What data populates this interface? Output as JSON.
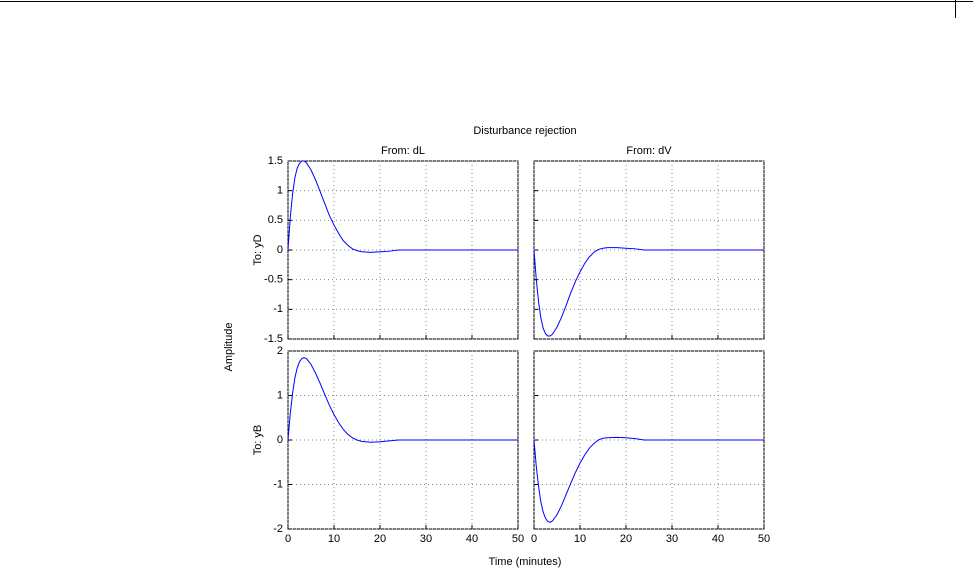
{
  "figure": {
    "title": "Disturbance rejection",
    "x_label": "Time (minutes)",
    "y_label": "Amplitude"
  },
  "chart_data": [
    {
      "type": "line",
      "title": "From: dL",
      "y_label": "To: yD",
      "x": [
        0,
        0.5,
        1,
        1.5,
        2,
        2.5,
        3,
        3.5,
        4,
        5,
        6,
        7,
        8,
        9,
        10,
        11,
        12,
        13,
        14,
        15,
        16,
        18,
        20,
        22,
        24,
        26,
        30,
        40,
        50
      ],
      "series": [
        {
          "color": "#0000ff",
          "values": [
            0,
            0.55,
            0.95,
            1.22,
            1.38,
            1.46,
            1.5,
            1.5,
            1.47,
            1.35,
            1.18,
            0.98,
            0.78,
            0.58,
            0.42,
            0.28,
            0.16,
            0.08,
            0.02,
            -0.01,
            -0.03,
            -0.04,
            -0.03,
            -0.02,
            0,
            0,
            0,
            0,
            0
          ]
        }
      ],
      "xlim": [
        0,
        50
      ],
      "xticks": [
        0,
        10,
        20,
        30,
        40,
        50
      ],
      "ylim": [
        -1.5,
        1.5
      ],
      "yticks": [
        -1.5,
        -1,
        -0.5,
        0,
        0.5,
        1,
        1.5
      ],
      "grid": true
    },
    {
      "type": "line",
      "title": "From: dV",
      "x": [
        0,
        0.5,
        1,
        1.5,
        2,
        2.5,
        3,
        3.5,
        4,
        5,
        6,
        7,
        8,
        9,
        10,
        11,
        12,
        13,
        14,
        15,
        16,
        18,
        20,
        22,
        24,
        26,
        30,
        40,
        50
      ],
      "series": [
        {
          "color": "#0000ff",
          "values": [
            0,
            -0.5,
            -0.88,
            -1.15,
            -1.32,
            -1.41,
            -1.45,
            -1.45,
            -1.42,
            -1.3,
            -1.13,
            -0.93,
            -0.72,
            -0.53,
            -0.37,
            -0.23,
            -0.12,
            -0.04,
            0.01,
            0.03,
            0.04,
            0.04,
            0.03,
            0.02,
            0,
            0,
            0,
            0,
            0
          ]
        }
      ],
      "xlim": [
        0,
        50
      ],
      "xticks": [
        0,
        10,
        20,
        30,
        40,
        50
      ],
      "ylim": [
        -1.5,
        1.5
      ],
      "yticks": [
        -1.5,
        -1,
        -0.5,
        0,
        0.5,
        1,
        1.5
      ],
      "grid": true
    },
    {
      "type": "line",
      "y_label": "To: yB",
      "x": [
        0,
        0.5,
        1,
        1.5,
        2,
        2.5,
        3,
        3.5,
        4,
        5,
        6,
        7,
        8,
        9,
        10,
        11,
        12,
        13,
        14,
        15,
        16,
        18,
        20,
        22,
        24,
        26,
        30,
        40,
        50
      ],
      "series": [
        {
          "color": "#0000ff",
          "values": [
            0,
            0.6,
            1.05,
            1.4,
            1.62,
            1.76,
            1.83,
            1.85,
            1.83,
            1.7,
            1.5,
            1.27,
            1.02,
            0.78,
            0.57,
            0.39,
            0.24,
            0.13,
            0.05,
            0,
            -0.03,
            -0.05,
            -0.04,
            -0.02,
            0,
            0,
            0,
            0,
            0
          ]
        }
      ],
      "xlim": [
        0,
        50
      ],
      "xticks": [
        0,
        10,
        20,
        30,
        40,
        50
      ],
      "ylim": [
        -2,
        2
      ],
      "yticks": [
        -2,
        -1,
        0,
        1,
        2
      ],
      "grid": true
    },
    {
      "type": "line",
      "x": [
        0,
        0.5,
        1,
        1.5,
        2,
        2.5,
        3,
        3.5,
        4,
        5,
        6,
        7,
        8,
        9,
        10,
        11,
        12,
        13,
        14,
        15,
        16,
        18,
        20,
        22,
        24,
        26,
        30,
        40,
        50
      ],
      "series": [
        {
          "color": "#0000ff",
          "values": [
            0,
            -0.6,
            -1.05,
            -1.4,
            -1.62,
            -1.76,
            -1.83,
            -1.85,
            -1.82,
            -1.68,
            -1.47,
            -1.22,
            -0.97,
            -0.73,
            -0.52,
            -0.34,
            -0.19,
            -0.08,
            0,
            0.04,
            0.05,
            0.06,
            0.05,
            0.03,
            0,
            0,
            0,
            0,
            0
          ]
        }
      ],
      "xlim": [
        0,
        50
      ],
      "xticks": [
        0,
        10,
        20,
        30,
        40,
        50
      ],
      "ylim": [
        -2,
        2
      ],
      "yticks": [
        -2,
        -1,
        0,
        1,
        2
      ],
      "grid": true
    }
  ]
}
